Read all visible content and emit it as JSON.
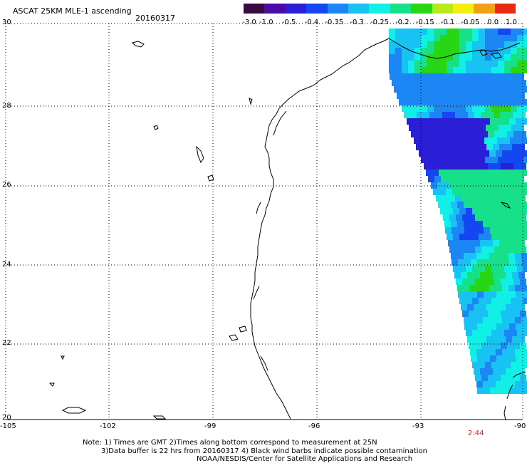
{
  "header": {
    "title": "ASCAT 25KM MLE-1 ascending",
    "date": "20160317"
  },
  "colorbar": {
    "labels": [
      "-3.0",
      "-1.0",
      "-0.5",
      "-0.4",
      "-0.35",
      "-0.3",
      "-0.25",
      "-0.2",
      "-0.15",
      "-0.1",
      "-0.05",
      "0.0",
      "1.0"
    ],
    "colors": [
      "#3a0a45",
      "#4b0ba6",
      "#2a1fd6",
      "#1446f2",
      "#1c86f4",
      "#18c2f2",
      "#10f0e6",
      "#16e08a",
      "#28d616",
      "#b6ea18",
      "#f2ee12",
      "#f4a014",
      "#e82a14"
    ]
  },
  "map": {
    "lat_labels": [
      "30",
      "28",
      "26",
      "24",
      "22",
      "20"
    ],
    "lon_labels": [
      "-105",
      "-102",
      "-99",
      "-96",
      "-93",
      "-90"
    ],
    "time_label": "2:44",
    "time_color": "#e02020"
  },
  "notes": {
    "line1": "Note: 1) Times are GMT 2)Times along bottom correspond to measurement at 25N",
    "line2": "3)Data buffer is 22 hrs from 20160317 4) Black wind barbs indicate possible contamination",
    "line3": "NOAA/NESDIS/Center for Satellite Applications and Research"
  }
}
